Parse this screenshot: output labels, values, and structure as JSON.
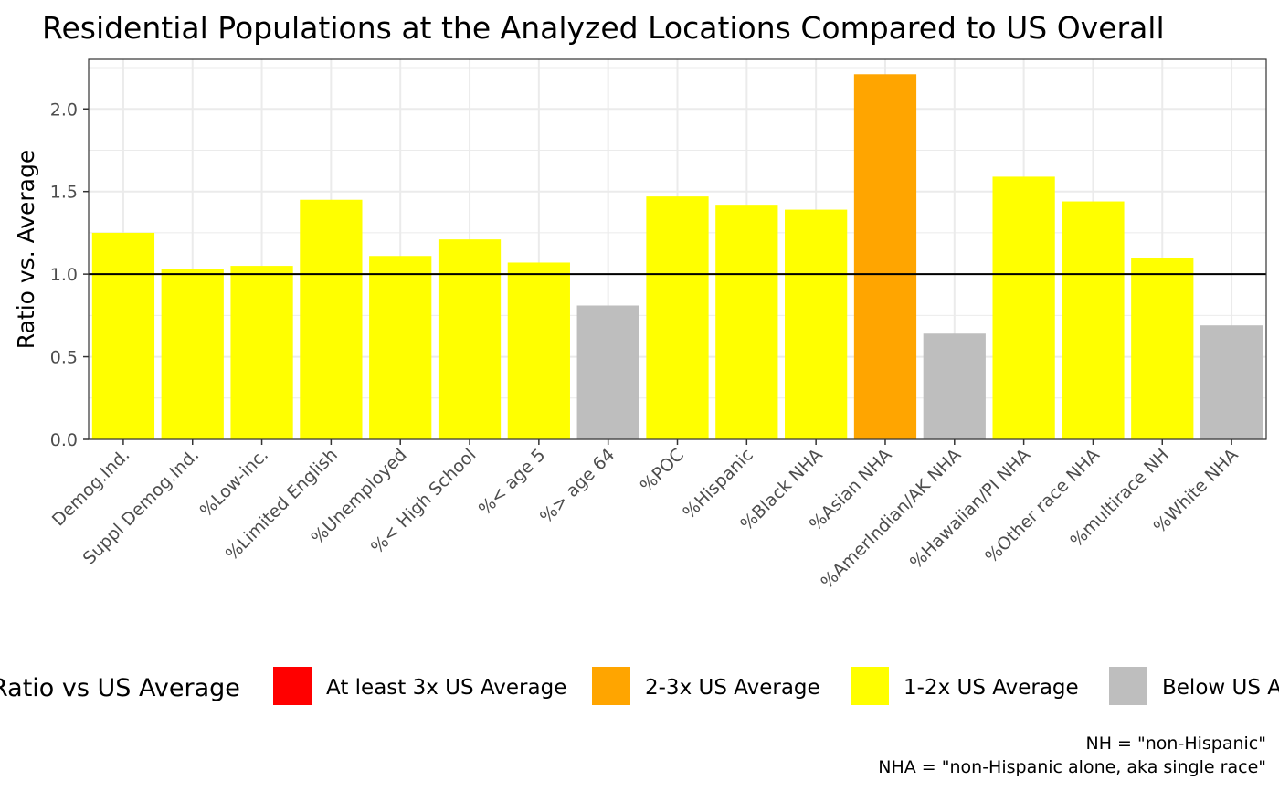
{
  "chart_data": {
    "type": "bar",
    "title": "Residential Populations at the Analyzed Locations Compared to US Overall",
    "xlabel": "",
    "ylabel": "Ratio vs. Average",
    "ylim": [
      0,
      2.3
    ],
    "yticks": [
      "0.0",
      "0.5",
      "1.0",
      "1.5",
      "2.0"
    ],
    "grid": true,
    "reference_line": 1.0,
    "categories": [
      "Demog.Ind.",
      "Suppl Demog.Ind.",
      "%Low-inc.",
      "%Limited English",
      "%Unemployed",
      "%< High School",
      "%< age 5",
      "%> age 64",
      "%POC",
      "%Hispanic",
      "%Black NHA",
      "%Asian NHA",
      "%AmerIndian/AK NHA",
      "%Hawaiian/PI NHA",
      "%Other race NHA",
      "%multirace NH",
      "%White NHA"
    ],
    "values": [
      1.25,
      1.03,
      1.05,
      1.45,
      1.11,
      1.21,
      1.07,
      0.81,
      1.47,
      1.42,
      1.39,
      2.21,
      0.64,
      1.59,
      1.44,
      1.1,
      0.69
    ],
    "legend": {
      "title": "Ratio vs US Average",
      "position": "bottom",
      "items": [
        {
          "label": "At least 3x US Average",
          "color": "#ff0000"
        },
        {
          "label": "2-3x US Average",
          "color": "#ffa500"
        },
        {
          "label": "1-2x US Average",
          "color": "#ffff00"
        },
        {
          "label": "Below US Average",
          "color": "#bebebe"
        }
      ]
    },
    "caption": [
      "NH = \"non-Hispanic\"",
      "NHA = \"non-Hispanic alone, aka single race\""
    ]
  }
}
